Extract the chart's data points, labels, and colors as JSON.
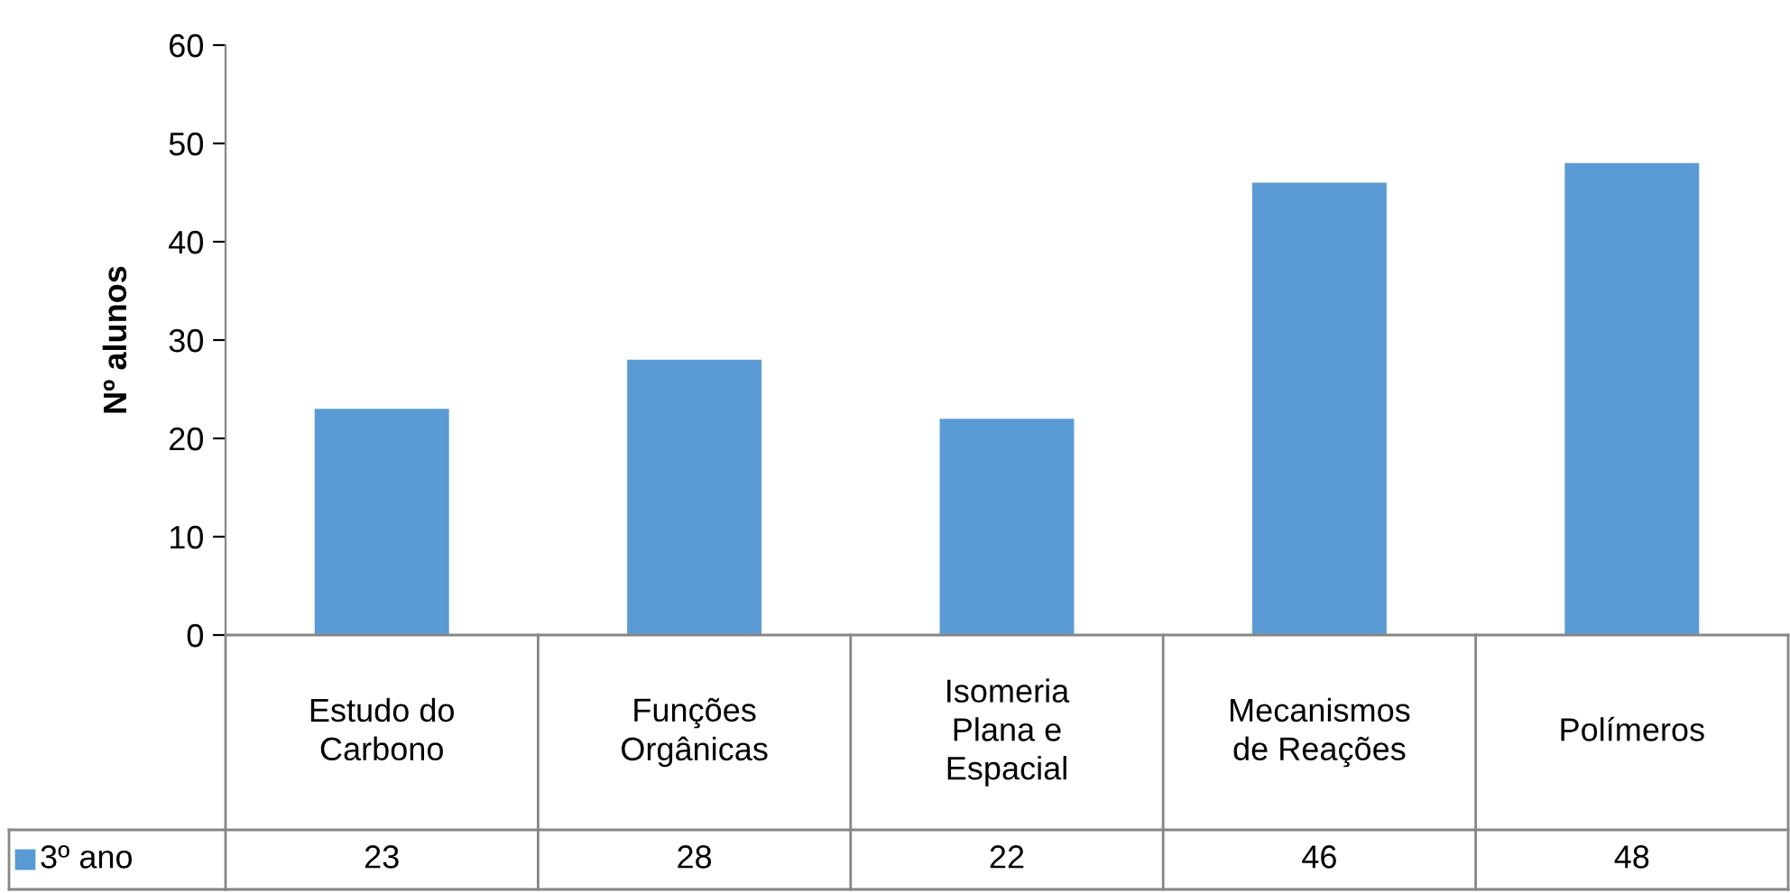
{
  "chart_data": {
    "type": "bar",
    "ylabel": "Nº alunos",
    "categories": [
      "Estudo do\nCarbono",
      "Funções\nOrgânicas",
      "Isomeria\nPlana e\nEspacial",
      "Mecanismos\nde Reações",
      "Polímeros"
    ],
    "series": [
      {
        "name": "3º ano",
        "color": "#5b9bd5",
        "values": [
          23,
          28,
          22,
          46,
          48
        ]
      }
    ],
    "ylim": [
      0,
      60
    ],
    "yticks": [
      0,
      10,
      20,
      30,
      40,
      50,
      60
    ],
    "grid": false,
    "data_labels": true,
    "legend": "bottom"
  }
}
